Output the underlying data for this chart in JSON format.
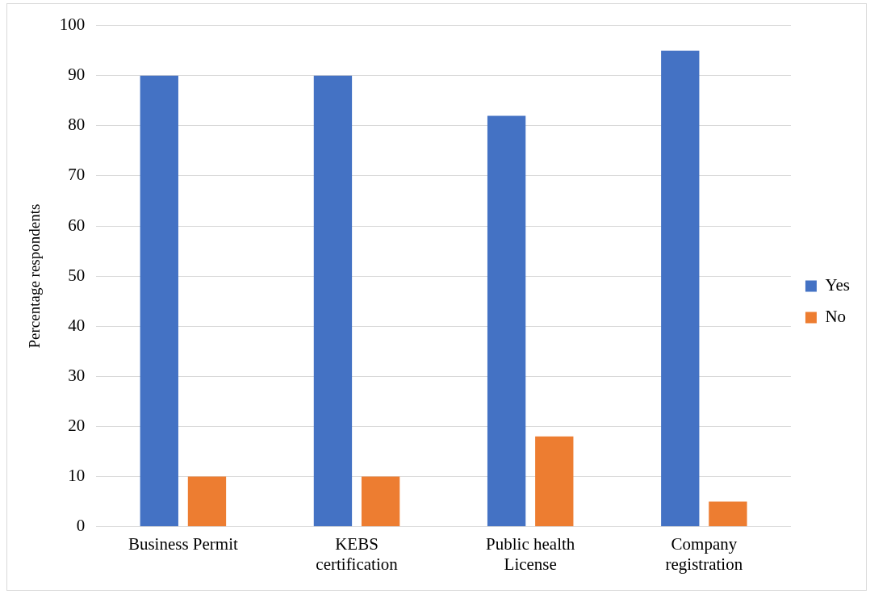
{
  "chart_data": {
    "type": "bar",
    "ylabel": "Percentage respondents",
    "categories": [
      "Business Permit",
      "KEBS certification",
      "Public health License",
      "Company registration"
    ],
    "series": [
      {
        "name": "Yes",
        "color": "#4472c4",
        "values": [
          90,
          90,
          82,
          95
        ]
      },
      {
        "name": "No",
        "color": "#ed7d31",
        "values": [
          10,
          10,
          18,
          5
        ]
      }
    ],
    "ylim": [
      0,
      100
    ],
    "yticks": [
      0,
      10,
      20,
      30,
      40,
      50,
      60,
      70,
      80,
      90,
      100
    ],
    "grid": "y",
    "legend": "right"
  }
}
